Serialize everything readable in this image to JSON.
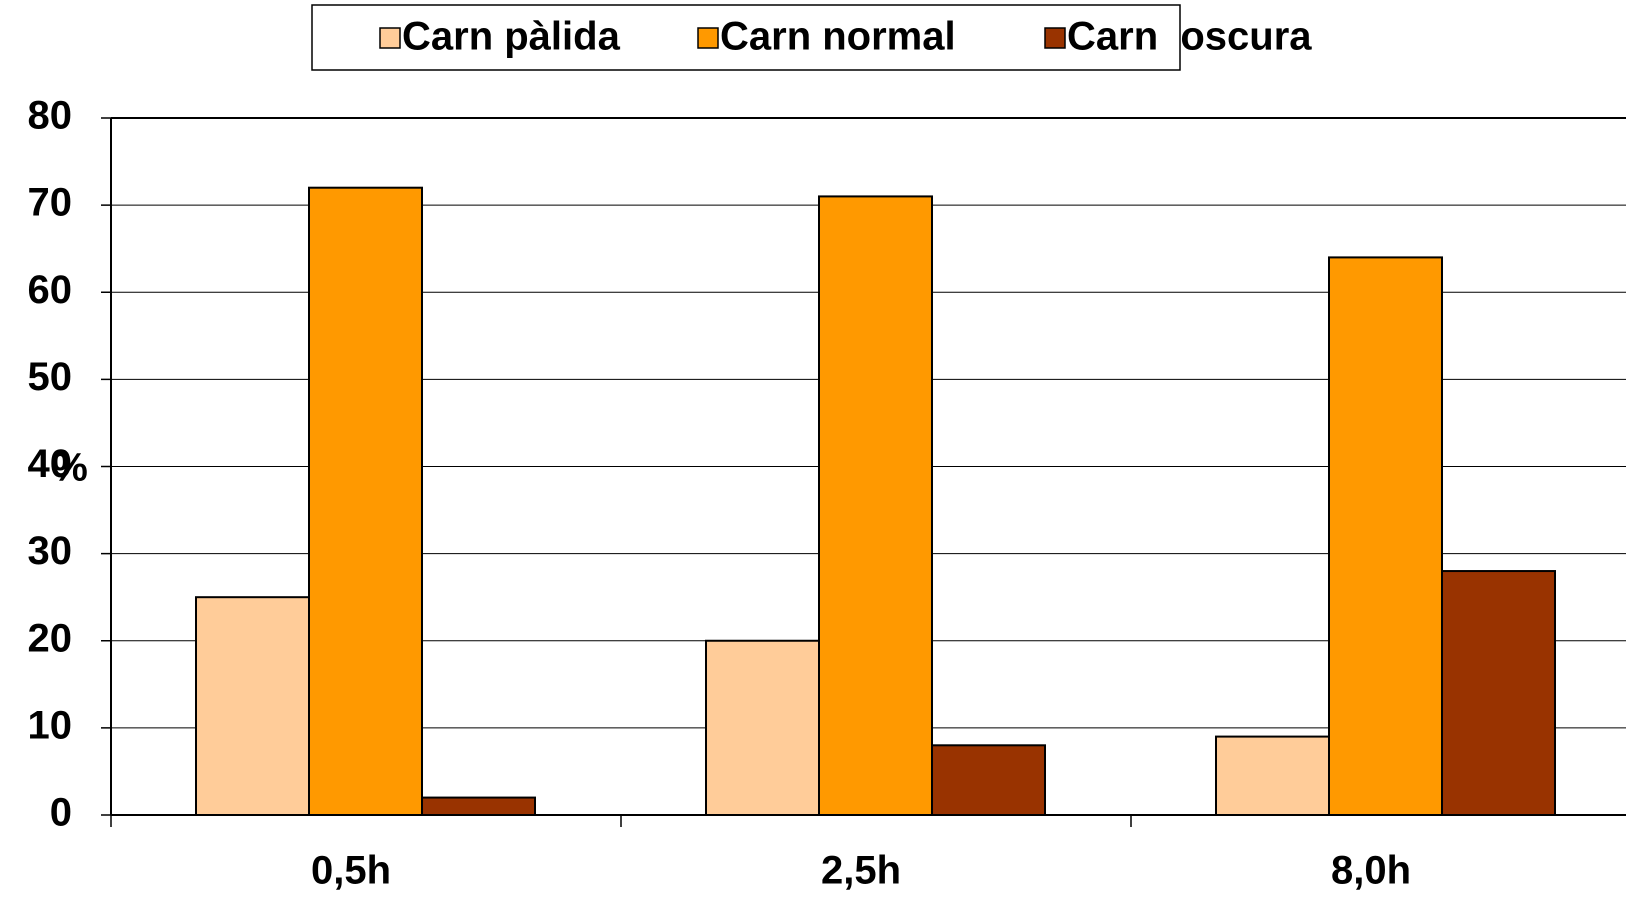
{
  "chart_data": {
    "type": "bar",
    "y_label": "%",
    "categories": [
      "0,5h",
      "2,5h",
      "8,0h"
    ],
    "series": [
      {
        "name": "Carn pàlida",
        "color": "#FFCC99",
        "values": [
          25,
          20,
          9
        ]
      },
      {
        "name": "Carn normal",
        "color": "#FF9900",
        "values": [
          72,
          71,
          64
        ]
      },
      {
        "name": "Carn  oscura",
        "color": "#993300",
        "values": [
          2,
          8,
          28
        ]
      }
    ],
    "ylim": [
      0,
      80
    ],
    "yticks": [
      0,
      10,
      20,
      30,
      40,
      50,
      60,
      70,
      80
    ],
    "grid": true,
    "legend": "top"
  }
}
